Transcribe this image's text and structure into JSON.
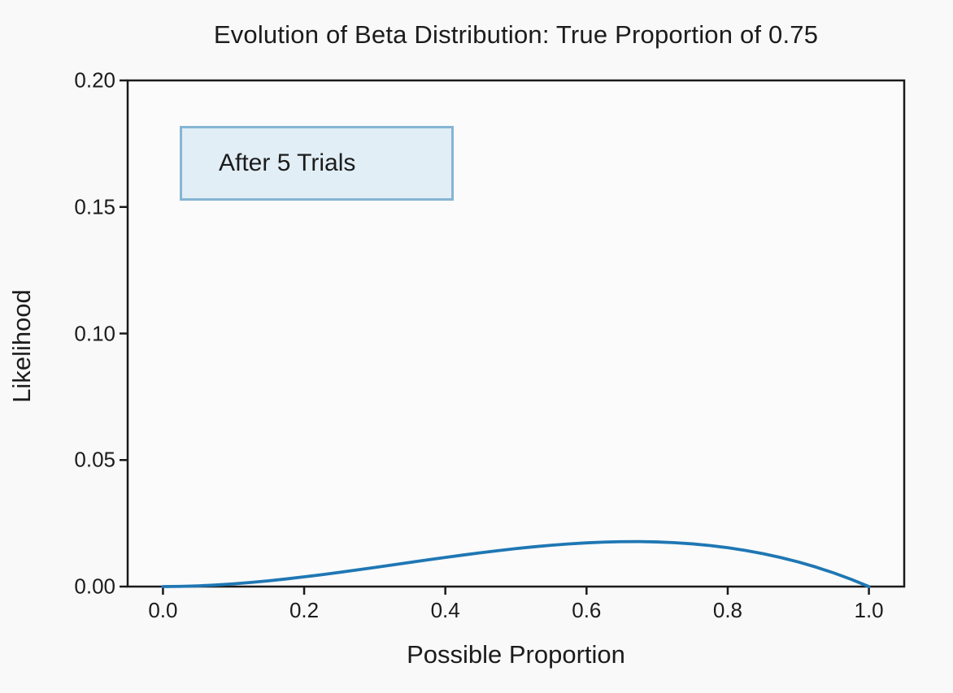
{
  "colors": {
    "figure_bg": "#f9f9f9",
    "axes_bg": "#fbfbfb",
    "spine": "#1a1a1a",
    "text": "#1c1c1c",
    "curve": "#1f77b4",
    "annotation_bg": "#e1eef6",
    "annotation_border": "#85b5d3"
  },
  "chart_data": {
    "type": "line",
    "title": "Evolution of Beta Distribution: True Proportion of 0.75",
    "xlabel": "Possible Proportion",
    "ylabel": "Likelihood",
    "xlim": [
      -0.05,
      1.05
    ],
    "ylim": [
      0,
      0.2
    ],
    "grid": false,
    "legend": false,
    "x_ticks": [
      0.0,
      0.2,
      0.4,
      0.6,
      0.8,
      1.0
    ],
    "x_tick_labels": [
      "0.0",
      "0.2",
      "0.4",
      "0.6",
      "0.8",
      "1.0"
    ],
    "y_ticks": [
      0.0,
      0.05,
      0.1,
      0.15,
      0.2
    ],
    "y_tick_labels": [
      "0.00",
      "0.05",
      "0.10",
      "0.15",
      "0.20"
    ],
    "annotation": {
      "text": "After 5 Trials"
    },
    "peak": {
      "x": 0.667,
      "y": 0.0178
    },
    "series": [
      {
        "name": "likelihood-after-5-trials",
        "color": "#1f77b4",
        "x": [
          0.0,
          0.025,
          0.05,
          0.075,
          0.1,
          0.125,
          0.15,
          0.175,
          0.2,
          0.225,
          0.25,
          0.275,
          0.3,
          0.325,
          0.35,
          0.375,
          0.4,
          0.425,
          0.45,
          0.475,
          0.5,
          0.525,
          0.55,
          0.575,
          0.6,
          0.625,
          0.65,
          0.675,
          0.7,
          0.725,
          0.75,
          0.775,
          0.8,
          0.825,
          0.85,
          0.875,
          0.9,
          0.925,
          0.95,
          0.975,
          1.0
        ],
        "y": [
          0.0,
          7.3e-05,
          0.000285,
          0.000624,
          0.00108,
          0.001641,
          0.002295,
          0.003032,
          0.00384,
          0.004708,
          0.005625,
          0.006579,
          0.00756,
          0.008556,
          0.009555,
          0.010547,
          0.01152,
          0.012463,
          0.013365,
          0.014214,
          0.015,
          0.015711,
          0.016335,
          0.016862,
          0.01728,
          0.017578,
          0.017745,
          0.017769,
          0.01764,
          0.017346,
          0.016875,
          0.016217,
          0.01536,
          0.014293,
          0.013005,
          0.011484,
          0.00972,
          0.007701,
          0.005415,
          0.002852,
          0.0
        ]
      }
    ]
  }
}
